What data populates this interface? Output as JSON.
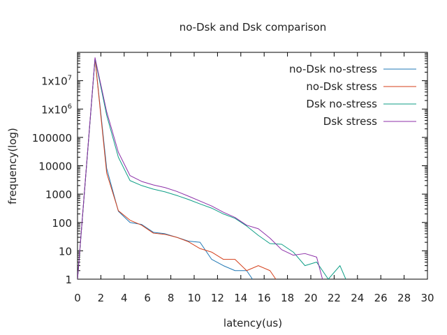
{
  "chart_data": {
    "type": "line",
    "title": "no-Dsk and Dsk comparison",
    "xlabel": "latency(us)",
    "ylabel": "frequency(log)",
    "xlim": [
      0,
      30
    ],
    "ylim": [
      1,
      100000000
    ],
    "y_scale": "log",
    "grid": false,
    "legend_position": "top-right",
    "x_ticks": [
      0,
      2,
      4,
      6,
      8,
      10,
      12,
      14,
      16,
      18,
      20,
      22,
      24,
      26,
      28,
      30
    ],
    "y_ticks": [
      {
        "value": 1,
        "label": "1"
      },
      {
        "value": 10,
        "label": "10"
      },
      {
        "value": 100,
        "label": "100"
      },
      {
        "value": 1000,
        "label": "1000"
      },
      {
        "value": 10000,
        "label": "10000"
      },
      {
        "value": 100000,
        "label": "100000"
      },
      {
        "value": 1000000,
        "label": "1x10",
        "sup": "6"
      },
      {
        "value": 10000000,
        "label": "1x10",
        "sup": "7"
      }
    ],
    "series": [
      {
        "name": "no-Dsk no-stress",
        "color": "#1f77b4",
        "points": [
          [
            0,
            1
          ],
          [
            1.5,
            60000000
          ],
          [
            2.5,
            8000
          ],
          [
            3.5,
            250
          ],
          [
            4.5,
            100
          ],
          [
            5.5,
            85
          ],
          [
            6.5,
            45
          ],
          [
            7.5,
            40
          ],
          [
            8.5,
            30
          ],
          [
            9.5,
            22
          ],
          [
            10.5,
            20
          ],
          [
            11.5,
            5
          ],
          [
            12.5,
            3
          ],
          [
            13.5,
            2
          ],
          [
            14.5,
            2
          ],
          [
            15,
            1
          ]
        ]
      },
      {
        "name": "no-Dsk stress",
        "color": "#d43f1a",
        "points": [
          [
            0,
            1
          ],
          [
            1.5,
            60000000
          ],
          [
            2.5,
            5500
          ],
          [
            3.5,
            260
          ],
          [
            4.5,
            120
          ],
          [
            5.5,
            80
          ],
          [
            6.5,
            42
          ],
          [
            7.5,
            38
          ],
          [
            8.5,
            30
          ],
          [
            9.5,
            21
          ],
          [
            10.5,
            12
          ],
          [
            11.5,
            9
          ],
          [
            12.5,
            5
          ],
          [
            13.5,
            5
          ],
          [
            14.5,
            2
          ],
          [
            15.5,
            3
          ],
          [
            16.5,
            2
          ],
          [
            17,
            1
          ]
        ]
      },
      {
        "name": "Dsk no-stress",
        "color": "#0e9e86",
        "points": [
          [
            0,
            1
          ],
          [
            1.5,
            60000000
          ],
          [
            2.5,
            600000
          ],
          [
            3.5,
            20000
          ],
          [
            4.5,
            3000
          ],
          [
            5.5,
            2000
          ],
          [
            6.5,
            1500
          ],
          [
            7.5,
            1200
          ],
          [
            8.5,
            900
          ],
          [
            9.5,
            650
          ],
          [
            10.5,
            450
          ],
          [
            11.5,
            320
          ],
          [
            12.5,
            200
          ],
          [
            13.5,
            140
          ],
          [
            14.5,
            75
          ],
          [
            15.5,
            35
          ],
          [
            16.5,
            18
          ],
          [
            17.5,
            17
          ],
          [
            18.5,
            9
          ],
          [
            19.5,
            3
          ],
          [
            20.5,
            4
          ],
          [
            21.5,
            1
          ],
          [
            22.5,
            3
          ],
          [
            23,
            1
          ]
        ]
      },
      {
        "name": "Dsk stress",
        "color": "#8c2fa8",
        "points": [
          [
            0,
            1
          ],
          [
            1.5,
            65000000
          ],
          [
            2.5,
            800000
          ],
          [
            3.5,
            30000
          ],
          [
            4.5,
            4500
          ],
          [
            5.5,
            2800
          ],
          [
            6.5,
            2100
          ],
          [
            7.5,
            1700
          ],
          [
            8.5,
            1250
          ],
          [
            9.5,
            850
          ],
          [
            10.5,
            570
          ],
          [
            11.5,
            380
          ],
          [
            12.5,
            230
          ],
          [
            13.5,
            150
          ],
          [
            14.5,
            80
          ],
          [
            15.5,
            60
          ],
          [
            16.5,
            28
          ],
          [
            17.5,
            11
          ],
          [
            18.5,
            7
          ],
          [
            19.5,
            8
          ],
          [
            20.5,
            6
          ],
          [
            21,
            1
          ]
        ]
      }
    ]
  }
}
